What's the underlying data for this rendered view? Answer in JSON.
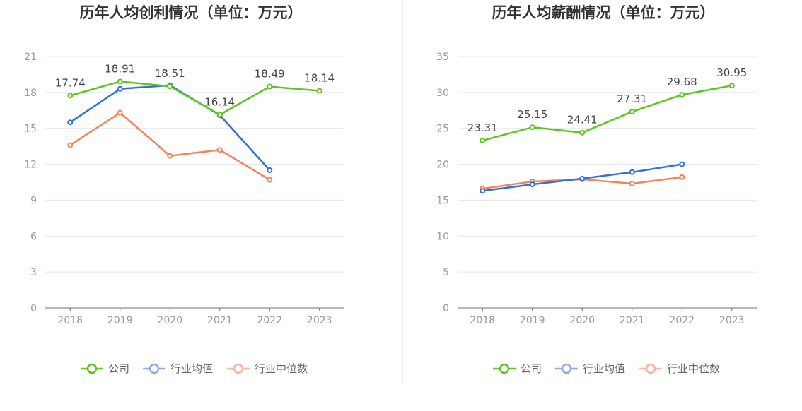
{
  "charts": [
    {
      "title": "历年人均创利情况（单位：万元）",
      "chart_data": {
        "type": "line",
        "title": "历年人均创利情况（单位：万元）",
        "categories": [
          "2018",
          "2019",
          "2020",
          "2021",
          "2022",
          "2023"
        ],
        "ylim": [
          0,
          21
        ],
        "yticks": [
          0,
          3,
          6,
          9,
          12,
          15,
          18,
          21
        ],
        "grid": true,
        "legend_position": "bottom",
        "series": [
          {
            "name": "公司",
            "color": "#5cc51f",
            "values": [
              17.74,
              18.91,
              18.51,
              16.14,
              18.49,
              18.14
            ],
            "labels": [
              "17.74",
              "18.91",
              "18.51",
              "16.14",
              "18.49",
              "18.14"
            ]
          },
          {
            "name": "行业均值",
            "color": "#3171d8",
            "values": [
              15.5,
              18.3,
              18.6,
              16.1,
              11.5,
              null
            ]
          },
          {
            "name": "行业中位数",
            "color": "#f0855a",
            "values": [
              13.6,
              16.3,
              12.7,
              13.2,
              10.7,
              null
            ]
          }
        ]
      }
    },
    {
      "title": "历年人均薪酬情况（单位：万元）",
      "chart_data": {
        "type": "line",
        "title": "历年人均薪酬情况（单位：万元）",
        "categories": [
          "2018",
          "2019",
          "2020",
          "2021",
          "2022",
          "2023"
        ],
        "ylim": [
          0,
          35
        ],
        "yticks": [
          0,
          5,
          10,
          15,
          20,
          25,
          30,
          35
        ],
        "grid": true,
        "legend_position": "bottom",
        "series": [
          {
            "name": "公司",
            "color": "#5cc51f",
            "values": [
              23.31,
              25.15,
              24.41,
              27.31,
              29.68,
              30.95
            ],
            "labels": [
              "23.31",
              "25.15",
              "24.41",
              "27.31",
              "29.68",
              "30.95"
            ]
          },
          {
            "name": "行业均值",
            "color": "#3171d8",
            "values": [
              16.3,
              17.2,
              18.0,
              18.9,
              20.0,
              null
            ]
          },
          {
            "name": "行业中位数",
            "color": "#f0855a",
            "values": [
              16.6,
              17.6,
              17.9,
              17.3,
              18.2,
              null
            ]
          }
        ]
      }
    }
  ],
  "legend": {
    "items": [
      {
        "name": "公司",
        "line_color": "#5cc51f"
      },
      {
        "name": "行业均值",
        "line_color": "#8aaaf0"
      },
      {
        "name": "行业中位数",
        "line_color": "#f8b59a"
      }
    ]
  }
}
